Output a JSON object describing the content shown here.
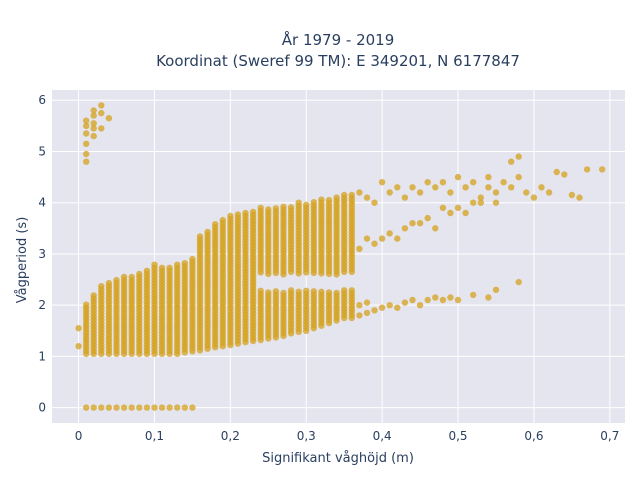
{
  "chart_data": {
    "type": "scatter",
    "title_lines": [
      "År 1979 - 2019",
      "Koordinat (Sweref 99 TM): E 349201, N 6177847"
    ],
    "xlabel": "Signifikant våghöjd (m)",
    "ylabel": "Vågperiod (s)",
    "xlim": [
      -0.035,
      0.72
    ],
    "ylim": [
      -0.3,
      6.2
    ],
    "x_ticks": [
      0,
      0.1,
      0.2,
      0.3,
      0.4,
      0.5,
      0.6,
      0.7
    ],
    "x_tick_labels": [
      "0",
      "0,1",
      "0,2",
      "0,3",
      "0,4",
      "0,5",
      "0,6",
      "0,7"
    ],
    "y_ticks": [
      0,
      1,
      2,
      3,
      4,
      5,
      6
    ],
    "y_tick_labels": [
      "0",
      "1",
      "2",
      "3",
      "4",
      "5",
      "6"
    ],
    "grid": true,
    "legend": false,
    "colors": {
      "marker": "#d4a21e",
      "plot_bg": "#e5e5ef",
      "grid": "#ffffff",
      "text": "#2a3f5f"
    },
    "series": [
      {
        "description": "vertical bands of dense observations at each wave-height step",
        "columns": [
          {
            "x": 0.01,
            "y_min": 1.05,
            "y_max": 2.05
          },
          {
            "x": 0.02,
            "y_min": 1.05,
            "y_max": 2.2
          },
          {
            "x": 0.03,
            "y_min": 1.05,
            "y_max": 2.4
          },
          {
            "x": 0.04,
            "y_min": 1.05,
            "y_max": 2.45
          },
          {
            "x": 0.05,
            "y_min": 1.05,
            "y_max": 2.5
          },
          {
            "x": 0.06,
            "y_min": 1.05,
            "y_max": 2.55
          },
          {
            "x": 0.07,
            "y_min": 1.05,
            "y_max": 2.6
          },
          {
            "x": 0.08,
            "y_min": 1.05,
            "y_max": 2.65
          },
          {
            "x": 0.09,
            "y_min": 1.05,
            "y_max": 2.7
          },
          {
            "x": 0.1,
            "y_min": 1.05,
            "y_max": 2.8
          },
          {
            "x": 0.11,
            "y_min": 1.05,
            "y_max": 2.75
          },
          {
            "x": 0.12,
            "y_min": 1.05,
            "y_max": 2.75
          },
          {
            "x": 0.13,
            "y_min": 1.05,
            "y_max": 2.8
          },
          {
            "x": 0.14,
            "y_min": 1.08,
            "y_max": 2.85
          },
          {
            "x": 0.15,
            "y_min": 1.1,
            "y_max": 2.95
          },
          {
            "x": 0.16,
            "y_min": 1.12,
            "y_max": 3.35
          },
          {
            "x": 0.17,
            "y_min": 1.15,
            "y_max": 3.45
          },
          {
            "x": 0.18,
            "y_min": 1.18,
            "y_max": 3.6
          },
          {
            "x": 0.19,
            "y_min": 1.2,
            "y_max": 3.7
          },
          {
            "x": 0.2,
            "y_min": 1.22,
            "y_max": 3.75
          },
          {
            "x": 0.21,
            "y_min": 1.25,
            "y_max": 3.8
          },
          {
            "x": 0.22,
            "y_min": 1.28,
            "y_max": 3.85
          },
          {
            "x": 0.23,
            "y_min": 1.3,
            "y_max": 3.85
          },
          {
            "x": 0.24,
            "y_min": 1.32,
            "y_max": 3.9
          },
          {
            "x": 0.25,
            "y_min": 1.35,
            "y_max": 3.9
          },
          {
            "x": 0.26,
            "y_min": 1.37,
            "y_max": 3.9
          },
          {
            "x": 0.27,
            "y_min": 1.4,
            "y_max": 3.95
          },
          {
            "x": 0.28,
            "y_min": 1.45,
            "y_max": 3.95
          },
          {
            "x": 0.29,
            "y_min": 1.48,
            "y_max": 4.0
          },
          {
            "x": 0.3,
            "y_min": 1.5,
            "y_max": 4.0
          },
          {
            "x": 0.31,
            "y_min": 1.55,
            "y_max": 4.05
          },
          {
            "x": 0.32,
            "y_min": 1.6,
            "y_max": 4.1
          },
          {
            "x": 0.33,
            "y_min": 1.65,
            "y_max": 4.1
          },
          {
            "x": 0.34,
            "y_min": 1.7,
            "y_max": 4.1
          },
          {
            "x": 0.35,
            "y_min": 1.75,
            "y_max": 4.15
          },
          {
            "x": 0.36,
            "y_min": 1.75,
            "y_max": 4.2
          }
        ],
        "gap_ranges": [
          {
            "x_min": 0.24,
            "x_max": 0.36,
            "y_gap": [
              2.3,
              2.6
            ]
          }
        ]
      },
      {
        "description": "upper branch (swell-like periods)",
        "points": [
          [
            0.37,
            3.1
          ],
          [
            0.37,
            4.2
          ],
          [
            0.38,
            3.3
          ],
          [
            0.38,
            4.1
          ],
          [
            0.39,
            3.2
          ],
          [
            0.39,
            4.0
          ],
          [
            0.4,
            3.3
          ],
          [
            0.4,
            4.4
          ],
          [
            0.41,
            3.4
          ],
          [
            0.41,
            4.2
          ],
          [
            0.42,
            3.3
          ],
          [
            0.42,
            4.3
          ],
          [
            0.43,
            3.5
          ],
          [
            0.43,
            4.1
          ],
          [
            0.44,
            3.6
          ],
          [
            0.44,
            4.3
          ],
          [
            0.45,
            3.6
          ],
          [
            0.45,
            4.2
          ],
          [
            0.46,
            3.7
          ],
          [
            0.46,
            4.4
          ],
          [
            0.47,
            3.5
          ],
          [
            0.47,
            4.3
          ],
          [
            0.48,
            3.9
          ],
          [
            0.48,
            4.4
          ],
          [
            0.49,
            3.8
          ],
          [
            0.49,
            4.2
          ],
          [
            0.5,
            3.9
          ],
          [
            0.5,
            4.5
          ],
          [
            0.51,
            3.8
          ],
          [
            0.51,
            4.3
          ],
          [
            0.52,
            4.0
          ],
          [
            0.52,
            4.4
          ],
          [
            0.53,
            4.1
          ],
          [
            0.53,
            4.0
          ],
          [
            0.54,
            4.3
          ],
          [
            0.54,
            4.5
          ],
          [
            0.55,
            4.2
          ],
          [
            0.55,
            4.0
          ],
          [
            0.56,
            4.4
          ],
          [
            0.57,
            4.3
          ],
          [
            0.57,
            4.8
          ],
          [
            0.58,
            4.5
          ],
          [
            0.58,
            4.9
          ],
          [
            0.59,
            4.2
          ],
          [
            0.6,
            4.1
          ],
          [
            0.61,
            4.3
          ],
          [
            0.62,
            4.2
          ],
          [
            0.63,
            4.6
          ],
          [
            0.64,
            4.55
          ],
          [
            0.65,
            4.15
          ],
          [
            0.66,
            4.1
          ],
          [
            0.67,
            4.65
          ],
          [
            0.69,
            4.65
          ]
        ]
      },
      {
        "description": "lower branch (wind-sea periods)",
        "points": [
          [
            0.37,
            1.8
          ],
          [
            0.37,
            2.0
          ],
          [
            0.38,
            1.85
          ],
          [
            0.38,
            2.05
          ],
          [
            0.39,
            1.9
          ],
          [
            0.4,
            1.95
          ],
          [
            0.41,
            2.0
          ],
          [
            0.42,
            1.95
          ],
          [
            0.43,
            2.05
          ],
          [
            0.44,
            2.1
          ],
          [
            0.45,
            2.0
          ],
          [
            0.46,
            2.1
          ],
          [
            0.47,
            2.15
          ],
          [
            0.48,
            2.1
          ],
          [
            0.49,
            2.15
          ],
          [
            0.5,
            2.1
          ],
          [
            0.52,
            2.2
          ],
          [
            0.54,
            2.15
          ],
          [
            0.55,
            2.3
          ],
          [
            0.58,
            2.45
          ]
        ]
      },
      {
        "description": "high-period cluster near zero wave height",
        "points": [
          [
            0.01,
            4.8
          ],
          [
            0.01,
            4.95
          ],
          [
            0.01,
            5.15
          ],
          [
            0.01,
            5.35
          ],
          [
            0.01,
            5.5
          ],
          [
            0.01,
            5.6
          ],
          [
            0.02,
            5.3
          ],
          [
            0.02,
            5.45
          ],
          [
            0.02,
            5.55
          ],
          [
            0.02,
            5.7
          ],
          [
            0.02,
            5.8
          ],
          [
            0.03,
            5.45
          ],
          [
            0.03,
            5.75
          ],
          [
            0.03,
            5.9
          ],
          [
            0.04,
            5.65
          ]
        ]
      },
      {
        "description": "zero-period observations",
        "points": [
          [
            0.01,
            0
          ],
          [
            0.02,
            0
          ],
          [
            0.03,
            0
          ],
          [
            0.04,
            0
          ],
          [
            0.05,
            0
          ],
          [
            0.06,
            0
          ],
          [
            0.07,
            0
          ],
          [
            0.08,
            0
          ],
          [
            0.09,
            0
          ],
          [
            0.1,
            0
          ],
          [
            0.11,
            0
          ],
          [
            0.12,
            0
          ],
          [
            0.13,
            0
          ],
          [
            0.14,
            0
          ],
          [
            0.15,
            0
          ]
        ]
      },
      {
        "description": "low outliers near x=0",
        "points": [
          [
            0.0,
            1.2
          ],
          [
            0.0,
            1.55
          ]
        ]
      }
    ]
  }
}
